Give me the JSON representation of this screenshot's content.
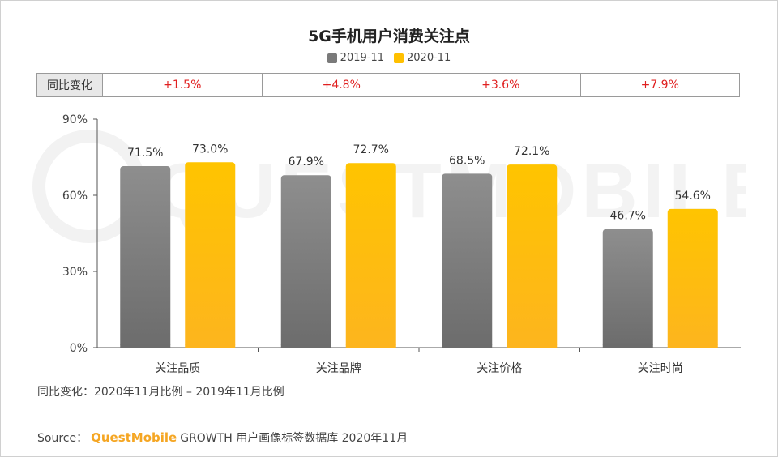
{
  "chart_data": {
    "type": "bar",
    "title": "5G手机用户消费关注点",
    "categories": [
      "关注品质",
      "关注品牌",
      "关注价格",
      "关注时尚"
    ],
    "series": [
      {
        "name": "2019-11",
        "values": [
          71.5,
          67.9,
          68.5,
          46.7
        ],
        "color": "#7a7a7a"
      },
      {
        "name": "2020-11",
        "values": [
          73.0,
          72.7,
          72.1,
          54.6
        ],
        "color": "#ffc000"
      }
    ],
    "value_labels": [
      [
        "71.5%",
        "67.9%",
        "68.5%",
        "46.7%"
      ],
      [
        "73.0%",
        "72.7%",
        "72.1%",
        "54.6%"
      ]
    ],
    "ylim": [
      0,
      90
    ],
    "yticks": [
      0,
      30,
      60,
      90
    ],
    "ytick_labels": [
      "0%",
      "30%",
      "60%",
      "90%"
    ],
    "legend_position": "top-center",
    "grid": false
  },
  "yoy": {
    "header": "同比变化",
    "values": [
      "+1.5%",
      "+4.8%",
      "+3.6%",
      "+7.9%"
    ]
  },
  "note": "同比变化：2020年11月比例 – 2019年11月比例",
  "source": {
    "label": "Source：",
    "brand": "QuestMobile",
    "text": "GROWTH 用户画像标签数据库 2020年11月"
  },
  "watermark_text": "QUESTMOBILE",
  "colors": {
    "gray": "#7a7a7a",
    "yellow": "#ffc000",
    "positive": "#e02020"
  }
}
